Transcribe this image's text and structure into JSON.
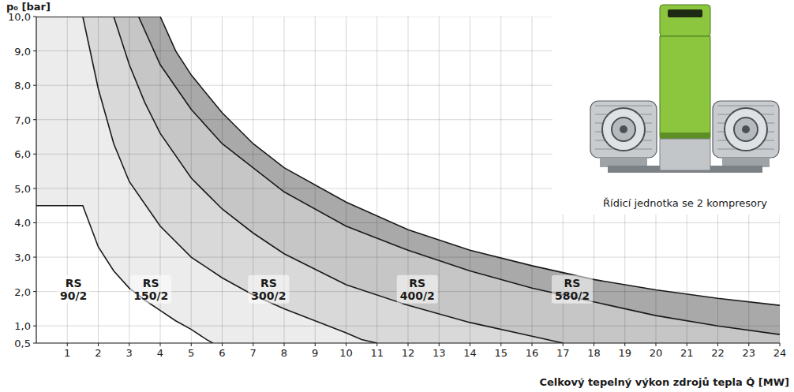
{
  "chart_data": {
    "type": "area",
    "y_label": "p₀ [bar]",
    "x_label": "Celkový tepelný výkon zdrojů tepla Q̇ [MW]",
    "image_caption": "Řídicí jednotka se 2 kompresory",
    "xlim": [
      0,
      24
    ],
    "ylim": [
      0.5,
      10
    ],
    "xticks": [
      1,
      2,
      3,
      4,
      5,
      6,
      7,
      8,
      9,
      10,
      11,
      12,
      13,
      14,
      15,
      16,
      17,
      18,
      19,
      20,
      21,
      22,
      23,
      24
    ],
    "yticks": [
      {
        "value": 0.5,
        "label": "0,5"
      },
      {
        "value": 1,
        "label": "1,0"
      },
      {
        "value": 2,
        "label": "2,0"
      },
      {
        "value": 3,
        "label": "3,0"
      },
      {
        "value": 4,
        "label": "4,0"
      },
      {
        "value": 5,
        "label": "5,0"
      },
      {
        "value": 6,
        "label": "6,0"
      },
      {
        "value": 7,
        "label": "7,0"
      },
      {
        "value": 8,
        "label": "8,0"
      },
      {
        "value": 9,
        "label": "9,0"
      },
      {
        "value": 10,
        "label": "10,0"
      }
    ],
    "grid": true,
    "series": [
      {
        "name": "RS 580/2",
        "color": "#a9a9a9",
        "x": [
          0,
          4,
          4.5,
          5,
          6,
          7,
          8,
          10,
          12,
          14,
          16,
          18,
          20,
          22,
          24
        ],
        "values": [
          10,
          10,
          9.0,
          8.3,
          7.2,
          6.3,
          5.6,
          4.6,
          3.8,
          3.2,
          2.75,
          2.35,
          2.05,
          1.8,
          1.6
        ]
      },
      {
        "name": "RS 400/2",
        "color": "#c6c6c6",
        "x": [
          0,
          3.3,
          4,
          5,
          6,
          8,
          10,
          12,
          14,
          16,
          18,
          20,
          22,
          24
        ],
        "values": [
          10,
          10,
          8.6,
          7.3,
          6.3,
          4.9,
          3.9,
          3.2,
          2.6,
          2.1,
          1.7,
          1.3,
          1.0,
          0.75
        ]
      },
      {
        "name": "RS 300/2",
        "color": "#d9d9d9",
        "x": [
          0,
          2.5,
          3,
          3.5,
          4,
          5,
          6,
          7,
          8,
          10,
          12,
          14,
          16,
          17
        ],
        "values": [
          10,
          10,
          8.6,
          7.5,
          6.6,
          5.3,
          4.4,
          3.7,
          3.1,
          2.2,
          1.6,
          1.1,
          0.7,
          0.5
        ]
      },
      {
        "name": "RS 150/2",
        "color": "#ececec",
        "x": [
          0,
          1.5,
          2,
          2.5,
          3,
          4,
          5,
          6,
          7,
          8,
          9,
          10,
          10.5,
          11
        ],
        "values": [
          10,
          10,
          7.9,
          6.3,
          5.2,
          3.9,
          3.0,
          2.4,
          1.9,
          1.5,
          1.15,
          0.8,
          0.6,
          0.5
        ]
      },
      {
        "name": "RS 90/2",
        "color": "#ffffff",
        "x": [
          0,
          1.5,
          2,
          2.5,
          3,
          3.5,
          4,
          4.5,
          5,
          5.5,
          5.7
        ],
        "values": [
          4.5,
          4.5,
          3.3,
          2.6,
          2.1,
          1.75,
          1.45,
          1.15,
          0.9,
          0.6,
          0.5
        ]
      }
    ]
  }
}
